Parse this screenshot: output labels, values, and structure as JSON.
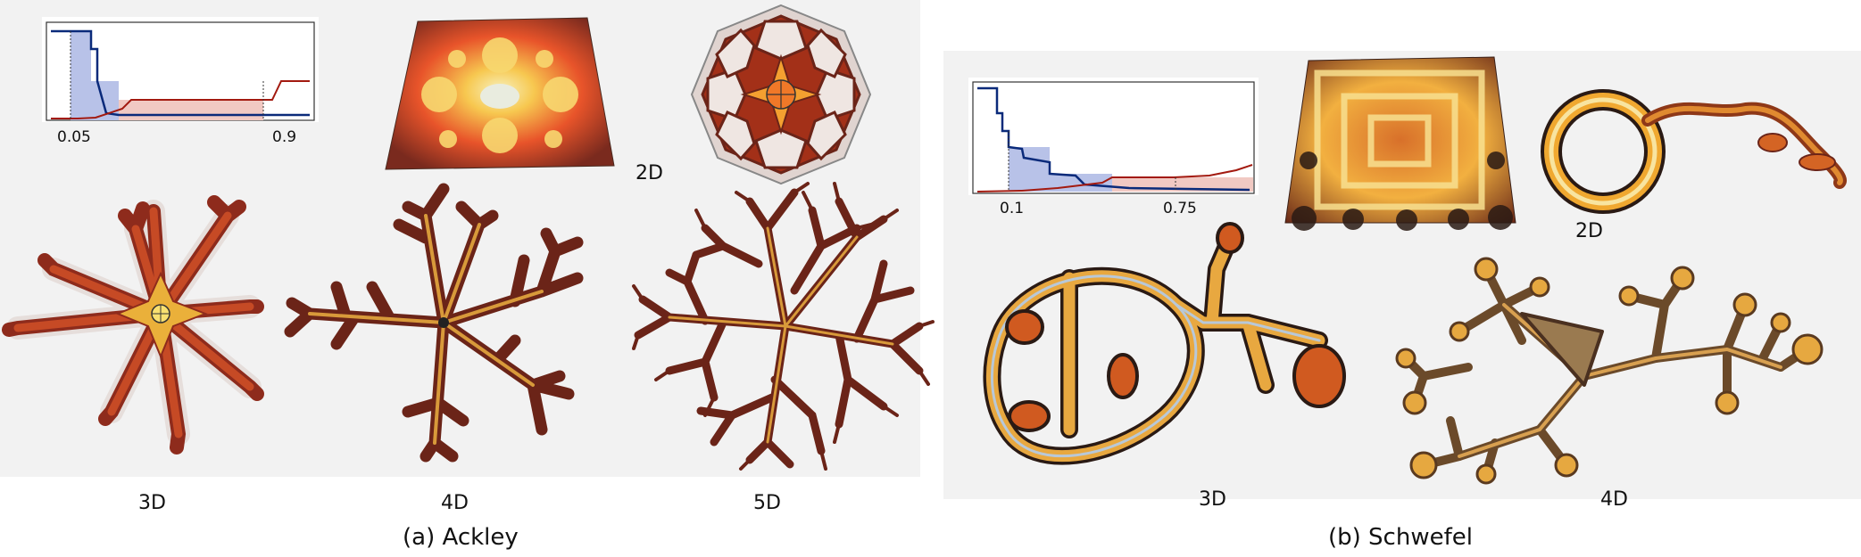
{
  "panel_a": {
    "caption": "(a)  Ackley",
    "inset": {
      "tick_left": "0.05",
      "tick_right": "0.9"
    },
    "labels": {
      "d2": "2D",
      "d3": "3D",
      "d4": "4D",
      "d5": "5D"
    }
  },
  "panel_b": {
    "caption": "(b)  Schwefel",
    "inset": {
      "tick_left": "0.1",
      "tick_right": "0.75"
    },
    "labels": {
      "d2": "2D",
      "d3": "3D",
      "d4": "4D"
    }
  },
  "colors": {
    "blue_curve": "#0a2a7a",
    "red_curve": "#a31a10",
    "tree_dark": "#6b2418",
    "tree_gold": "#e8b040"
  }
}
